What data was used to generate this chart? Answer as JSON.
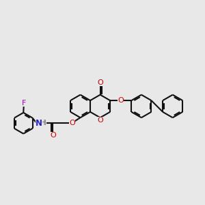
{
  "bg_color": "#e8e8e8",
  "bc": "#111111",
  "lw": 1.5,
  "dbo": 0.07,
  "shrink": 0.13,
  "r": 0.62,
  "fs": 8.0,
  "Oc": "#cc0000",
  "Nc": "#2222cc",
  "Fc": "#9900bb",
  "xlim": [
    -0.5,
    10.5
  ],
  "ylim": [
    2.5,
    8.5
  ],
  "figw": 3.0,
  "figh": 3.0,
  "dpi": 100
}
